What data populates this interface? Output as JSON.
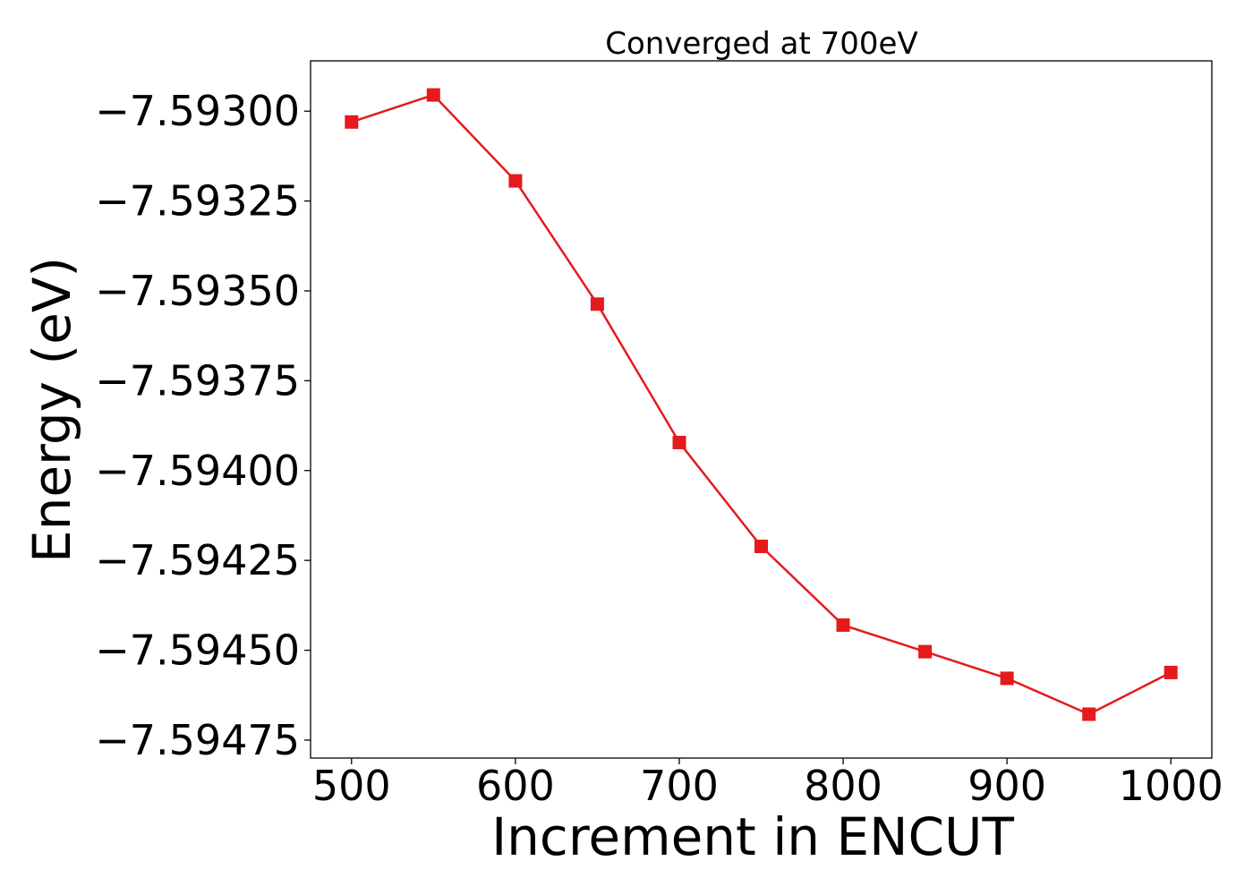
{
  "chart_data": {
    "type": "line",
    "title": "Converged at 700eV",
    "xlabel": "Increment in ENCUT",
    "ylabel": "Energy (eV)",
    "x": [
      500,
      550,
      600,
      650,
      700,
      750,
      800,
      850,
      900,
      950,
      1000
    ],
    "series": [
      {
        "name": "",
        "color": "#e41a1c",
        "marker": "square",
        "values": [
          -7.59303,
          -7.592955,
          -7.593194,
          -7.593537,
          -7.593922,
          -7.594211,
          -7.59443,
          -7.594504,
          -7.594578,
          -7.594678,
          -7.594562
        ]
      }
    ],
    "xlim": [
      475,
      1025
    ],
    "ylim": [
      -7.5948,
      -7.59286
    ],
    "xticks": [
      500,
      600,
      700,
      800,
      900,
      1000
    ],
    "xtick_labels": [
      "500",
      "600",
      "700",
      "800",
      "900",
      "1000"
    ],
    "yticks": [
      -7.593,
      -7.59325,
      -7.5935,
      -7.59375,
      -7.594,
      -7.59425,
      -7.5945,
      -7.59475
    ],
    "ytick_labels": [
      "−7.59300",
      "−7.59325",
      "−7.59350",
      "−7.59375",
      "−7.59400",
      "−7.59425",
      "−7.59450",
      "−7.59475"
    ],
    "grid": false,
    "legend": "none"
  }
}
